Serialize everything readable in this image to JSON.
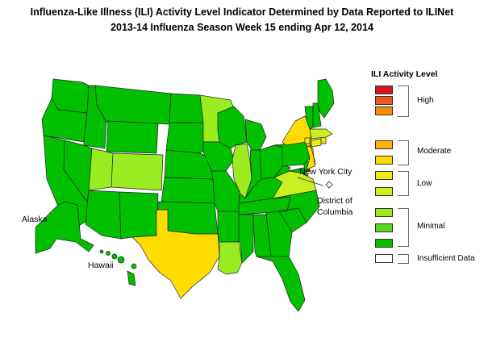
{
  "title": {
    "line1": "Influenza-Like Illness (ILI) Activity Level Indicator Determined by Data Reported to ILINet",
    "line2": "2013-14  Influenza Season Week  15 ending Apr 12, 2014"
  },
  "map_labels": {
    "alaska": "Alaska",
    "hawaii": "Hawaii",
    "nyc": "New York City",
    "dc_line1": "District of",
    "dc_line2": "Columbia"
  },
  "legend": {
    "title": "ILI Activity Level",
    "levels": [
      {
        "level": 10,
        "color": "#d7191c"
      },
      {
        "level": 9,
        "color": "#f05a1a"
      },
      {
        "level": 8,
        "color": "#ff8c00"
      },
      {
        "level": 7,
        "color": "#ffb000"
      },
      {
        "level": 6,
        "color": "#ffdc00"
      },
      {
        "level": 5,
        "color": "#f0ee10"
      },
      {
        "level": 4,
        "color": "#c8f020"
      },
      {
        "level": 3,
        "color": "#9aec20"
      },
      {
        "level": 2,
        "color": "#5ad81a"
      },
      {
        "level": 1,
        "color": "#00c000"
      },
      {
        "level": 0,
        "color": "#ffffff"
      }
    ],
    "groups": {
      "high": "High",
      "moderate": "Moderate",
      "low": "Low",
      "minimal": "Minimal",
      "insufficient": "Insufficient Data"
    }
  },
  "state_levels": {
    "base_color": "#00c000",
    "TX": {
      "level": 6,
      "color": "#ffdc00"
    },
    "NY": {
      "level": 6,
      "color": "#ffdc00"
    },
    "NJ": {
      "level": 6,
      "color": "#ffdc00"
    },
    "RI": {
      "level": 6,
      "color": "#ffdc00"
    },
    "NYC": {
      "level": 5,
      "color": "#f0ee10"
    },
    "CT": {
      "level": 5,
      "color": "#f0ee10"
    },
    "MA": {
      "level": 4,
      "color": "#c8f020"
    },
    "VA": {
      "level": 4,
      "color": "#c8f020"
    },
    "UT": {
      "level": 3,
      "color": "#9aec20"
    },
    "CO": {
      "level": 3,
      "color": "#9aec20"
    },
    "MN": {
      "level": 3,
      "color": "#9aec20"
    },
    "IL": {
      "level": 3,
      "color": "#9aec20"
    },
    "LA": {
      "level": 3,
      "color": "#9aec20"
    },
    "DC": {
      "level": 0,
      "color": "#ffffff"
    }
  }
}
